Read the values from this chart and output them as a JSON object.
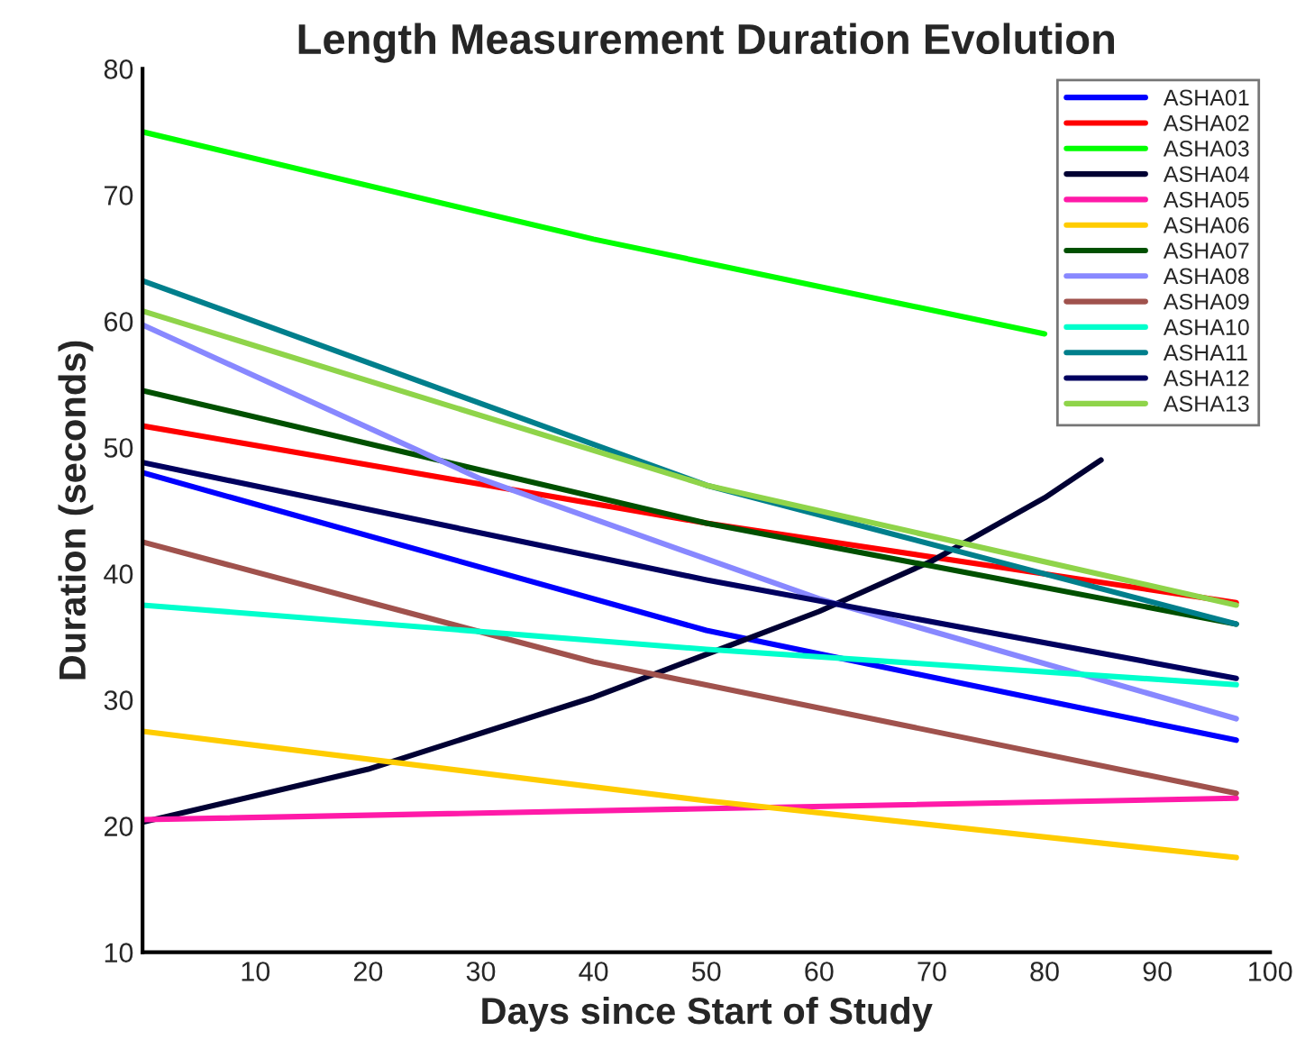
{
  "chart_data": {
    "type": "line",
    "title": "Length Measurement Duration Evolution",
    "xlabel": "Days since Start of Study",
    "ylabel": "Duration (seconds)",
    "xlim": [
      0,
      100
    ],
    "ylim": [
      10,
      80
    ],
    "xticks": [
      10,
      20,
      30,
      40,
      50,
      60,
      70,
      80,
      90,
      100
    ],
    "yticks": [
      10,
      20,
      30,
      40,
      50,
      60,
      70,
      80
    ],
    "grid": false,
    "legend": "top right",
    "marker": "none",
    "line_style": "solid",
    "series": [
      {
        "name": "ASHA01",
        "color": "#0000ff",
        "x": [
          0,
          50,
          97
        ],
        "values": [
          48,
          35.5,
          26.8
        ]
      },
      {
        "name": "ASHA02",
        "color": "#ff0000",
        "x": [
          0,
          50,
          97
        ],
        "values": [
          51.7,
          44,
          37.7
        ]
      },
      {
        "name": "ASHA03",
        "color": "#00ff00",
        "x": [
          0,
          40,
          80
        ],
        "values": [
          75,
          66.5,
          59
        ]
      },
      {
        "name": "ASHA04",
        "color": "#000033",
        "x": [
          0,
          20,
          40,
          60,
          70,
          80,
          85
        ],
        "values": [
          20.3,
          24.5,
          30.2,
          37,
          41,
          46,
          49
        ]
      },
      {
        "name": "ASHA05",
        "color": "#ff1aa8",
        "x": [
          0,
          97
        ],
        "values": [
          20.5,
          22.2
        ]
      },
      {
        "name": "ASHA06",
        "color": "#ffcc00",
        "x": [
          0,
          50,
          97
        ],
        "values": [
          27.5,
          22,
          17.5
        ]
      },
      {
        "name": "ASHA07",
        "color": "#005000",
        "x": [
          0,
          50,
          97
        ],
        "values": [
          54.5,
          44,
          36
        ]
      },
      {
        "name": "ASHA08",
        "color": "#8888ff",
        "x": [
          0,
          30,
          60,
          97
        ],
        "values": [
          59.7,
          47.5,
          38,
          28.5
        ]
      },
      {
        "name": "ASHA09",
        "color": "#a0524d",
        "x": [
          0,
          40,
          97
        ],
        "values": [
          42.5,
          33,
          22.6
        ]
      },
      {
        "name": "ASHA10",
        "color": "#00ffcc",
        "x": [
          0,
          50,
          97
        ],
        "values": [
          37.5,
          34,
          31.2
        ]
      },
      {
        "name": "ASHA11",
        "color": "#007f8c",
        "x": [
          0,
          50,
          97
        ],
        "values": [
          63.2,
          47,
          36
        ]
      },
      {
        "name": "ASHA12",
        "color": "#00005f",
        "x": [
          0,
          50,
          97
        ],
        "values": [
          48.8,
          39.5,
          31.7
        ]
      },
      {
        "name": "ASHA13",
        "color": "#8fd44a",
        "x": [
          0,
          50,
          97
        ],
        "values": [
          60.8,
          47,
          37.5
        ]
      }
    ]
  }
}
